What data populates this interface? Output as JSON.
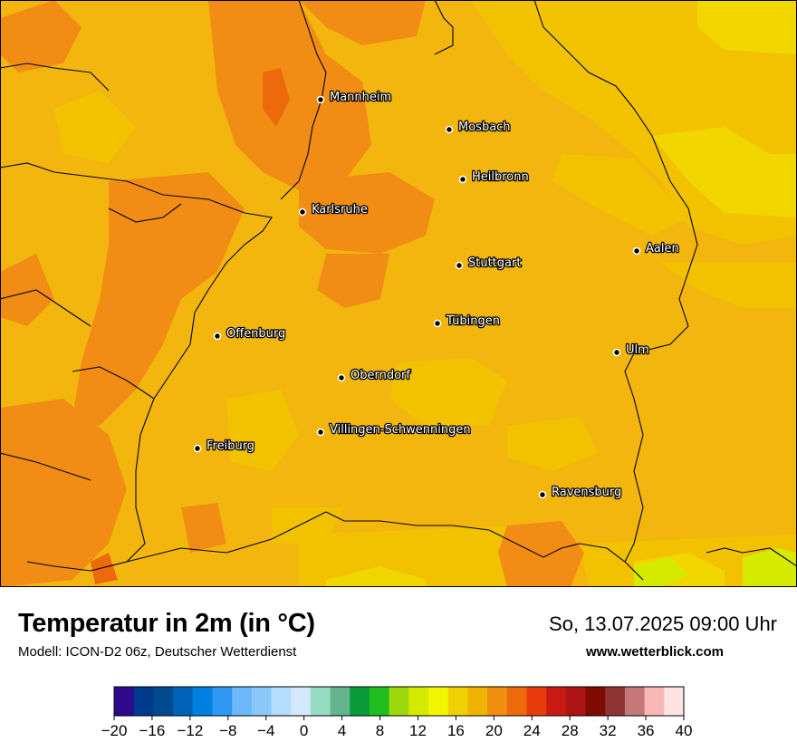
{
  "cities": [
    {
      "name": "Mannheim"
    },
    {
      "name": "Mosbach"
    },
    {
      "name": "Heilbronn"
    },
    {
      "name": "Karlsruhe"
    },
    {
      "name": "Aalen"
    },
    {
      "name": "Stuttgart"
    },
    {
      "name": "Tübingen"
    },
    {
      "name": "Offenburg"
    },
    {
      "name": "Ulm"
    },
    {
      "name": "Oberndorf"
    },
    {
      "name": "Villingen-Schwenningen"
    },
    {
      "name": "Freiburg"
    },
    {
      "name": "Ravensburg"
    }
  ],
  "footer": {
    "title": "Temperatur in 2m (in °C)",
    "model": "Modell: ICON-D2 06z, Deutscher Wetterdienst",
    "datetime": "So, 13.07.2025 09:00 Uhr",
    "website": "www.wetterblick.com"
  },
  "legend": {
    "ticks": [
      "−20",
      "−16",
      "−12",
      "−8",
      "−4",
      "0",
      "4",
      "8",
      "12",
      "16",
      "20",
      "24",
      "28",
      "32",
      "36",
      "40"
    ],
    "colors": [
      "#2e0a8a",
      "#003a8c",
      "#004a8f",
      "#0063b8",
      "#0080e0",
      "#2e98f5",
      "#6cb8fb",
      "#8ac8fc",
      "#b3dcfd",
      "#d2e8fd",
      "#96dcc2",
      "#64b48e",
      "#0b9a3a",
      "#20bd1e",
      "#9cd80a",
      "#d6ea00",
      "#f2f600",
      "#f0d000",
      "#f0b400",
      "#f08e0e",
      "#ec6a0c",
      "#e83c0c",
      "#c81a12",
      "#ae1414",
      "#7e0a00",
      "#8e3434",
      "#c47878",
      "#f8b6b6",
      "#fde2e2"
    ],
    "scale_colors": {
      "c14": "#d6ea00",
      "c16": "#f2d600",
      "c18": "#f2c200",
      "c20": "#f3b60e",
      "c22": "#f18d14",
      "c24": "#ec6a0c"
    }
  }
}
